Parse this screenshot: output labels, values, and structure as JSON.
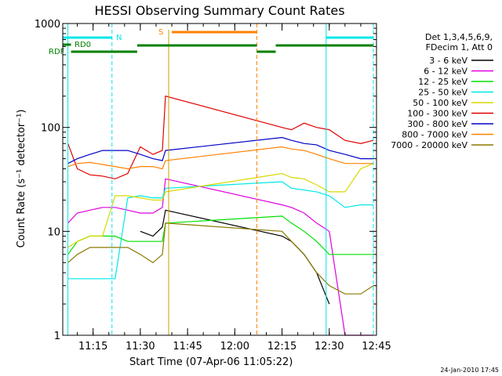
{
  "chart_data": {
    "type": "line",
    "title": "HESSI Observing Summary Count Rates",
    "xlabel": "Start Time (07-Apr-06 11:05:22)",
    "ylabel": "Count Rate (s⁻¹ detector⁻¹)",
    "y_scale": "log",
    "xlim": [
      "11:05:22",
      "12:45:00"
    ],
    "ylim": [
      1,
      1000
    ],
    "x_ticks": [
      "11:15",
      "11:30",
      "11:45",
      "12:00",
      "12:15",
      "12:30",
      "12:45"
    ],
    "y_ticks": [
      "1",
      "10",
      "100",
      "1000"
    ],
    "legend_placement": "right",
    "legend_header": [
      "Det 1,3,4,5,6,9,",
      "FDecim 1, Att 0"
    ],
    "series": [
      {
        "name": "3 - 6 keV",
        "color": "#000000",
        "x": [
          "11:07",
          "11:10",
          "11:14",
          "11:18",
          "11:22",
          "11:26",
          "11:30",
          "11:34",
          "11:37",
          "11:38",
          "12:15",
          "12:18",
          "12:22",
          "12:26",
          "12:30"
        ],
        "values": [
          null,
          null,
          null,
          null,
          null,
          null,
          10,
          9,
          11,
          16,
          9,
          8,
          6,
          4,
          2
        ]
      },
      {
        "name": "6 - 12 keV",
        "color": "#e000e0",
        "x": [
          "11:07",
          "11:10",
          "11:14",
          "11:18",
          "11:22",
          "11:26",
          "11:30",
          "11:34",
          "11:37",
          "11:38",
          "12:15",
          "12:18",
          "12:22",
          "12:26",
          "12:30",
          "12:35",
          "12:40",
          "12:44"
        ],
        "values": [
          12,
          15,
          16,
          17,
          17,
          16,
          15,
          15,
          17,
          32,
          18,
          17,
          15,
          12,
          10,
          1,
          1,
          1
        ]
      },
      {
        "name": "12 - 25 keV",
        "color": "#00e000",
        "x": [
          "11:07",
          "11:10",
          "11:14",
          "11:18",
          "11:22",
          "11:26",
          "11:30",
          "11:34",
          "11:37",
          "11:38",
          "12:15",
          "12:18",
          "12:22",
          "12:26",
          "12:30",
          "12:35",
          "12:40",
          "12:44"
        ],
        "values": [
          6,
          8,
          9,
          9,
          9,
          8,
          8,
          8,
          8,
          12,
          14,
          12,
          10,
          8,
          6,
          6,
          6,
          6
        ]
      },
      {
        "name": "25 - 50 keV",
        "color": "#00e8e8",
        "x": [
          "11:07",
          "11:10",
          "11:14",
          "11:18",
          "11:22",
          "11:26",
          "11:30",
          "11:34",
          "11:37",
          "11:38",
          "12:15",
          "12:18",
          "12:22",
          "12:26",
          "12:30",
          "12:35",
          "12:40",
          "12:44"
        ],
        "values": [
          3.5,
          3.5,
          3.5,
          3.5,
          3.5,
          21,
          22,
          21,
          21,
          26,
          30,
          26,
          25,
          24,
          22,
          17,
          18,
          18
        ]
      },
      {
        "name": "50 - 100 keV",
        "color": "#d8d800",
        "x": [
          "11:07",
          "11:10",
          "11:14",
          "11:18",
          "11:22",
          "11:26",
          "11:30",
          "11:34",
          "11:37",
          "11:38",
          "12:15",
          "12:18",
          "12:22",
          "12:26",
          "12:30",
          "12:35",
          "12:40",
          "12:44"
        ],
        "values": [
          7,
          8,
          9,
          9,
          22,
          22,
          21,
          20,
          20,
          24,
          36,
          33,
          32,
          28,
          24,
          24,
          40,
          45
        ]
      },
      {
        "name": "100 - 300 keV",
        "color": "#e00000",
        "x": [
          "11:07",
          "11:10",
          "11:14",
          "11:18",
          "11:22",
          "11:26",
          "11:30",
          "11:34",
          "11:37",
          "11:38",
          "12:15",
          "12:18",
          "12:22",
          "12:26",
          "12:30",
          "12:35",
          "12:40",
          "12:44"
        ],
        "values": [
          70,
          40,
          35,
          34,
          32,
          36,
          65,
          55,
          60,
          200,
          100,
          95,
          110,
          100,
          95,
          75,
          70,
          75
        ]
      },
      {
        "name": "300 - 800 keV",
        "color": "#0000c8",
        "x": [
          "11:07",
          "11:10",
          "11:14",
          "11:18",
          "11:22",
          "11:26",
          "11:30",
          "11:34",
          "11:37",
          "11:38",
          "12:15",
          "12:18",
          "12:22",
          "12:26",
          "12:30",
          "12:35",
          "12:40",
          "12:44"
        ],
        "values": [
          45,
          50,
          55,
          60,
          60,
          60,
          55,
          50,
          48,
          60,
          80,
          75,
          70,
          68,
          60,
          55,
          50,
          50
        ]
      },
      {
        "name": "800 - 7000 keV",
        "color": "#ff8000",
        "x": [
          "11:07",
          "11:10",
          "11:14",
          "11:18",
          "11:22",
          "11:26",
          "11:30",
          "11:34",
          "11:37",
          "11:38",
          "12:15",
          "12:18",
          "12:22",
          "12:26",
          "12:30",
          "12:35",
          "12:40",
          "12:44"
        ],
        "values": [
          42,
          45,
          46,
          44,
          42,
          40,
          42,
          42,
          40,
          48,
          65,
          62,
          60,
          55,
          50,
          45,
          45,
          45
        ]
      },
      {
        "name": "7000 - 20000 keV",
        "color": "#8b7a00",
        "x": [
          "11:07",
          "11:10",
          "11:14",
          "11:18",
          "11:22",
          "11:26",
          "11:30",
          "11:34",
          "11:37",
          "11:38",
          "12:15",
          "12:18",
          "12:22",
          "12:26",
          "12:30",
          "12:35",
          "12:40",
          "12:44"
        ],
        "values": [
          5,
          6,
          7,
          7,
          7,
          7,
          6,
          5,
          6,
          12,
          10,
          8,
          6,
          4,
          3,
          2.5,
          2.5,
          3
        ]
      }
    ],
    "markers": {
      "rd0_label": "RD0",
      "rdf_label": "RDF",
      "n_label": "N",
      "s_label": "S"
    },
    "footer_stamp": "24-Jan-2010 17:45"
  }
}
